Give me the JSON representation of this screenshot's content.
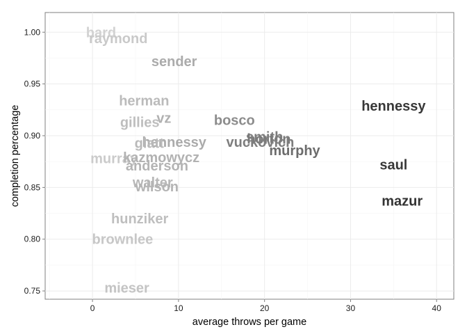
{
  "chart_data": {
    "type": "scatter",
    "title": "",
    "xlabel": "average throws per game",
    "ylabel": "completion percentage",
    "xlim": [
      -5.5,
      42
    ],
    "ylim": [
      0.742,
      1.019
    ],
    "x_ticks": [
      0,
      10,
      20,
      30,
      40
    ],
    "y_ticks": [
      0.75,
      0.8,
      0.85,
      0.9,
      0.95,
      1.0
    ],
    "x_tick_labels": [
      "0",
      "10",
      "20",
      "30",
      "40"
    ],
    "y_tick_labels": [
      "0.75",
      "0.80",
      "0.85",
      "0.90",
      "0.95",
      "1.00"
    ],
    "grid": true,
    "legend": "none",
    "color_low": "#d2d2d2",
    "color_high": "#333333",
    "points": [
      {
        "label": "bard",
        "x": 1,
        "y": 1.0
      },
      {
        "label": "raymond",
        "x": 3,
        "y": 0.994
      },
      {
        "label": "sender",
        "x": 9.5,
        "y": 0.972
      },
      {
        "label": "herman",
        "x": 6,
        "y": 0.934
      },
      {
        "label": "gillies",
        "x": 5.5,
        "y": 0.913
      },
      {
        "label": "vz",
        "x": 8.3,
        "y": 0.917
      },
      {
        "label": "bosco",
        "x": 16.5,
        "y": 0.915
      },
      {
        "label": "hennessy",
        "x": 35,
        "y": 0.929
      },
      {
        "label": "smith",
        "x": 20,
        "y": 0.899
      },
      {
        "label": "horton",
        "x": 20.5,
        "y": 0.897
      },
      {
        "label": "vuckovich",
        "x": 19.5,
        "y": 0.894
      },
      {
        "label": "murphy",
        "x": 23.5,
        "y": 0.886
      },
      {
        "label": "hennessy",
        "x": 9.5,
        "y": 0.894
      },
      {
        "label": "glatt",
        "x": 6.6,
        "y": 0.893
      },
      {
        "label": "murray",
        "x": 2.5,
        "y": 0.878
      },
      {
        "label": "kazmowycz",
        "x": 8,
        "y": 0.879
      },
      {
        "label": "anderson",
        "x": 7.5,
        "y": 0.871
      },
      {
        "label": "saul",
        "x": 35,
        "y": 0.872
      },
      {
        "label": "walter",
        "x": 7,
        "y": 0.855
      },
      {
        "label": "wilson",
        "x": 7.5,
        "y": 0.851
      },
      {
        "label": "mazur",
        "x": 36,
        "y": 0.837
      },
      {
        "label": "hunziker",
        "x": 5.5,
        "y": 0.82
      },
      {
        "label": "brownlee",
        "x": 3.5,
        "y": 0.8
      },
      {
        "label": "mieser",
        "x": 4,
        "y": 0.753
      }
    ]
  }
}
